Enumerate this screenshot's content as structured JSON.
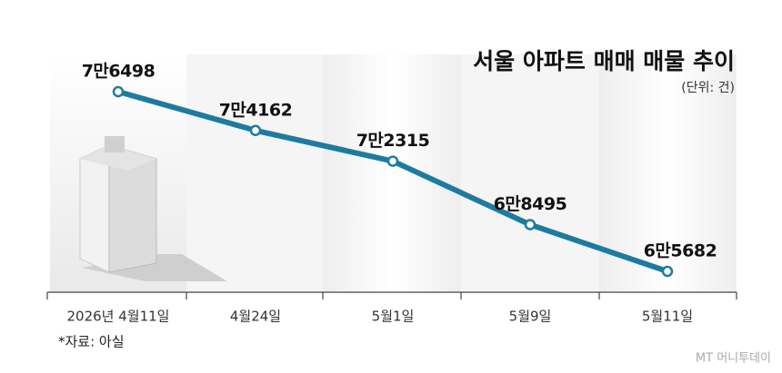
{
  "chart_data": {
    "type": "line",
    "title": "서울 아파트 매매 매물 추이",
    "subtitle": "(단위: 건)",
    "categories": [
      "2026년 4월11일",
      "4월24일",
      "5월1일",
      "5월9일",
      "5월11일"
    ],
    "values": [
      76498,
      74162,
      72315,
      68495,
      65682
    ],
    "value_labels": [
      "7만6498",
      "7만4162",
      "7만2315",
      "6만8495",
      "6만5682"
    ],
    "color": "#1d7ba0",
    "source": "*자료: 아실",
    "watermark": "MT 머니투데이"
  }
}
